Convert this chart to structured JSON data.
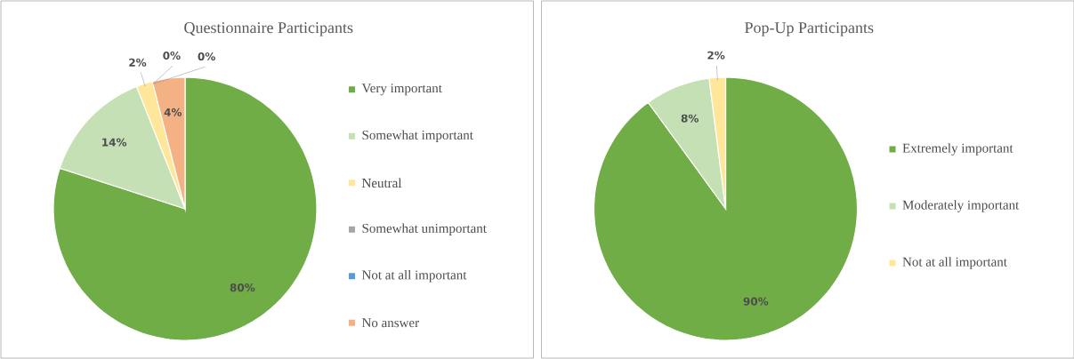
{
  "chart_data": [
    {
      "type": "pie",
      "title": "Questionnaire Participants",
      "categories": [
        "Very important",
        "Somewhat important",
        "Neutral",
        "Somewhat unimportant",
        "Not at all important",
        "No answer"
      ],
      "values": [
        80,
        14,
        2,
        0,
        0,
        4
      ],
      "value_labels": [
        "80%",
        "14%",
        "2%",
        "0%",
        "0%",
        "4%"
      ],
      "colors": [
        "#70ad47",
        "#c5e0b4",
        "#ffe699",
        "#a5a5a5",
        "#5b9bd5",
        "#f4b183"
      ],
      "legend": "right"
    },
    {
      "type": "pie",
      "title": "Pop-Up Participants",
      "categories": [
        "Extremely important",
        "Moderately important",
        "Not at all important"
      ],
      "values": [
        90,
        8,
        2
      ],
      "value_labels": [
        "90%",
        "8%",
        "2%"
      ],
      "colors": [
        "#70ad47",
        "#c5e0b4",
        "#ffe699"
      ],
      "legend": "right"
    }
  ]
}
